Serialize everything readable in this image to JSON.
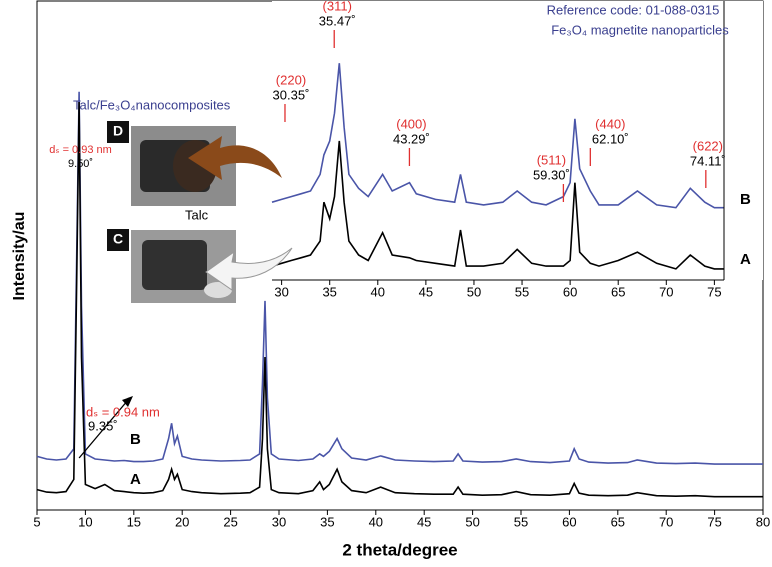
{
  "chart_data": [
    {
      "type": "line",
      "xlabel": "2 theta/degree",
      "ylabel": "Intensity/au",
      "xlim": [
        5,
        80
      ],
      "xticks": [
        5,
        10,
        15,
        20,
        25,
        30,
        35,
        40,
        45,
        50,
        55,
        60,
        65,
        70,
        75,
        80
      ],
      "ylim": [
        0,
        100
      ],
      "x": [
        5,
        6,
        7,
        8,
        8.8,
        9.1,
        9.35,
        9.6,
        10,
        11,
        12,
        13,
        14,
        15,
        16,
        17,
        18,
        18.6,
        18.9,
        19.2,
        19.5,
        20,
        21,
        22,
        24,
        26,
        27,
        28,
        28.3,
        28.55,
        28.8,
        29.2,
        30,
        32,
        33.5,
        34.2,
        34.6,
        35.2,
        36,
        36.5,
        37.5,
        39,
        40.5,
        42,
        44,
        46,
        48,
        48.5,
        49,
        51,
        53,
        54.5,
        56,
        58,
        60,
        60.5,
        61,
        62,
        64,
        66,
        67,
        69,
        71,
        73,
        75,
        77,
        79,
        80
      ],
      "series": [
        {
          "name": "B",
          "color": "#4a55a8",
          "values": [
            10.5,
            10,
            9.8,
            10,
            12,
            50,
            82,
            40,
            11,
            10,
            9.8,
            9.6,
            9.7,
            9.5,
            9.5,
            9.6,
            10,
            14,
            17,
            13,
            14.5,
            10.5,
            10,
            9.8,
            9.6,
            9.7,
            9.8,
            11,
            25,
            41,
            22,
            11,
            10,
            9.7,
            10,
            11,
            10.5,
            11.5,
            14,
            12,
            10.2,
            9.8,
            10.6,
            9.8,
            9.6,
            9.5,
            9.6,
            11,
            9.6,
            9.4,
            9.5,
            10,
            9.5,
            9.3,
            9.6,
            12,
            10,
            9.4,
            9.2,
            9.3,
            9.8,
            9.2,
            9.1,
            9.2,
            9,
            9,
            9,
            9
          ]
        },
        {
          "name": "A",
          "color": "#000000",
          "values": [
            4,
            3.5,
            3.4,
            3.6,
            6,
            45,
            80,
            30,
            5,
            4.2,
            5,
            3.8,
            3.6,
            3.4,
            3.3,
            3.4,
            3.8,
            6,
            8,
            6,
            7,
            4,
            3.6,
            3.4,
            3.2,
            3.3,
            3.4,
            4.5,
            14,
            30,
            12,
            4,
            3.4,
            3.2,
            3.8,
            5.5,
            4,
            5,
            8,
            5.5,
            3.8,
            3.4,
            4.5,
            3.4,
            3.2,
            3.1,
            3.1,
            4.5,
            3.1,
            2.9,
            3,
            3.6,
            3,
            2.9,
            3.2,
            5.2,
            3.3,
            2.9,
            2.8,
            2.9,
            3.4,
            2.8,
            2.7,
            2.8,
            2.6,
            2.6,
            2.6,
            2.6
          ]
        }
      ],
      "annotations": [
        {
          "x": 9.35,
          "label": "9.35˚",
          "spacing": "dₛ = 0.94 nm"
        },
        {
          "x": 9.5,
          "label": "9.50˚",
          "spacing": "dₛ = 0.93 nm"
        }
      ],
      "photos": [
        {
          "tag": "D",
          "caption": "Talc/Fe₃O₄nanocomposites"
        },
        {
          "tag": "C",
          "caption": "Talc"
        }
      ]
    },
    {
      "type": "line",
      "subtitle": "Reference code: 01-088-0315",
      "title": "Fe₃O₄ magnetite nanoparticles",
      "xlim": [
        29,
        76
      ],
      "xticks": [
        30,
        35,
        40,
        45,
        50,
        55,
        60,
        65,
        70,
        75
      ],
      "ylim": [
        0,
        100
      ],
      "x": [
        29,
        30,
        31,
        32,
        33,
        34,
        34.4,
        35,
        35.5,
        36,
        36.5,
        37,
        38,
        39,
        40.5,
        41.5,
        43.3,
        44,
        46,
        48,
        48.6,
        49.2,
        51,
        53,
        54.5,
        56,
        57.5,
        59.3,
        60,
        60.5,
        61,
        62.1,
        63,
        65,
        67,
        69,
        71,
        72.5,
        74,
        75,
        76
      ],
      "series": [
        {
          "name": "B",
          "color": "#4a55a8",
          "values": [
            28,
            29,
            30,
            31,
            32,
            38,
            45,
            50,
            60,
            78,
            55,
            38,
            33,
            30,
            38,
            32,
            35,
            31,
            29,
            28,
            38,
            28,
            27,
            28,
            32,
            28,
            27,
            30,
            35,
            58,
            40,
            32,
            27,
            27,
            32,
            27,
            26,
            33,
            28,
            26,
            26
          ]
        },
        {
          "name": "A",
          "color": "#000000",
          "values": [
            5,
            6,
            7,
            8,
            9,
            14,
            28,
            22,
            30,
            50,
            28,
            14,
            9,
            7,
            17,
            9,
            8,
            7,
            6,
            5,
            18,
            5,
            5,
            6,
            11,
            6,
            5,
            5,
            7,
            35,
            10,
            6,
            5,
            7,
            10,
            6,
            4,
            9,
            5,
            4,
            4
          ]
        }
      ],
      "annotations": [
        {
          "x": 30.35,
          "label": "30.35˚",
          "hkl": "(220)"
        },
        {
          "x": 35.47,
          "label": "35.47˚",
          "hkl": "(311)"
        },
        {
          "x": 43.29,
          "label": "43.29˚",
          "hkl": "(400)"
        },
        {
          "x": 59.3,
          "label": "59.30˚",
          "hkl": "(511)"
        },
        {
          "x": 62.1,
          "label": "62.10˚",
          "hkl": "(440)"
        },
        {
          "x": 74.11,
          "label": "74.11˚",
          "hkl": "(622)"
        }
      ]
    }
  ]
}
